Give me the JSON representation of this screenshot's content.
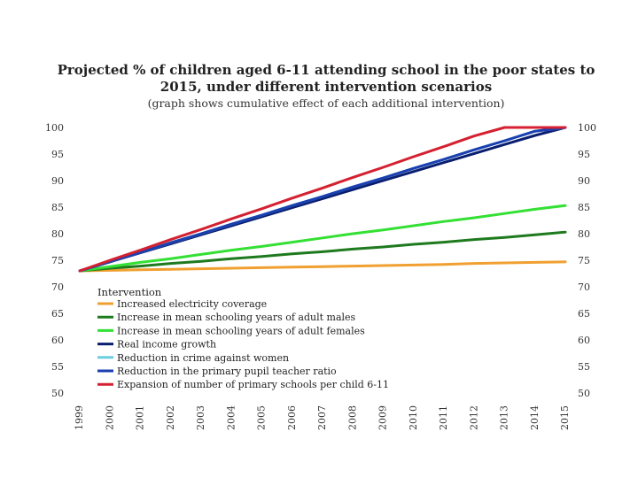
{
  "chart_data": {
    "type": "line",
    "title": "Projected % of children aged 6-11 attending school in the poor states to",
    "title_line2": "2015, under different intervention scenarios",
    "subtitle": "(graph shows cumulative effect of each additional intervention)",
    "xlabel": "",
    "ylabel": "",
    "ylim": [
      50,
      100
    ],
    "yticks": [
      50,
      55,
      60,
      65,
      70,
      75,
      80,
      85,
      90,
      95,
      100
    ],
    "categories": [
      "1999",
      "2000",
      "2001",
      "2002",
      "2003",
      "2004",
      "2005",
      "2006",
      "2007",
      "2008",
      "2009",
      "2010",
      "2011",
      "2012",
      "2013",
      "2014",
      "2015"
    ],
    "legend_title": "Intervention",
    "legend_position": "bottom-left",
    "series": [
      {
        "name": "Increased electricity coverage",
        "color": "#f0a030",
        "values": [
          73.0,
          73.1,
          73.2,
          73.3,
          73.4,
          73.5,
          73.6,
          73.7,
          73.8,
          73.9,
          74.0,
          74.1,
          74.2,
          74.4,
          74.5,
          74.6,
          74.7
        ]
      },
      {
        "name": "Increase in mean schooling years of adult males",
        "color": "#1e7a1e",
        "values": [
          73.0,
          73.5,
          73.9,
          74.4,
          74.8,
          75.3,
          75.7,
          76.2,
          76.6,
          77.1,
          77.5,
          78.0,
          78.4,
          78.9,
          79.3,
          79.8,
          80.3
        ]
      },
      {
        "name": "Increase in mean schooling years of adult females",
        "color": "#33e033",
        "values": [
          73.0,
          73.8,
          74.6,
          75.3,
          76.1,
          76.9,
          77.6,
          78.4,
          79.2,
          80.0,
          80.7,
          81.5,
          82.3,
          83.0,
          83.8,
          84.6,
          85.3
        ]
      },
      {
        "name": "Real income growth",
        "color": "#0a1e70",
        "values": [
          73.0,
          74.7,
          76.4,
          78.1,
          79.8,
          81.5,
          83.2,
          84.9,
          86.6,
          88.3,
          90.0,
          91.7,
          93.4,
          95.1,
          96.8,
          98.5,
          100.0
        ]
      },
      {
        "name": "Reduction in crime against women",
        "color": "#6ecde0",
        "values": [
          73.0,
          74.8,
          76.5,
          78.3,
          80.0,
          81.8,
          83.5,
          85.3,
          87.0,
          88.8,
          90.5,
          92.3,
          94.0,
          95.8,
          97.5,
          99.3,
          100.0
        ]
      },
      {
        "name": "Reduction in the primary pupil teacher ratio",
        "color": "#1a3fb0",
        "values": [
          73.0,
          74.8,
          76.5,
          78.3,
          80.0,
          81.8,
          83.5,
          85.3,
          87.0,
          88.8,
          90.5,
          92.3,
          94.0,
          95.8,
          97.5,
          99.3,
          100.0
        ]
      },
      {
        "name": "Expansion of number of primary schools per child 6-11",
        "color": "#d42030",
        "values": [
          73.0,
          75.0,
          76.9,
          78.9,
          80.8,
          82.8,
          84.7,
          86.7,
          88.6,
          90.6,
          92.5,
          94.5,
          96.4,
          98.4,
          100.0,
          100.0,
          100.0
        ]
      }
    ]
  }
}
